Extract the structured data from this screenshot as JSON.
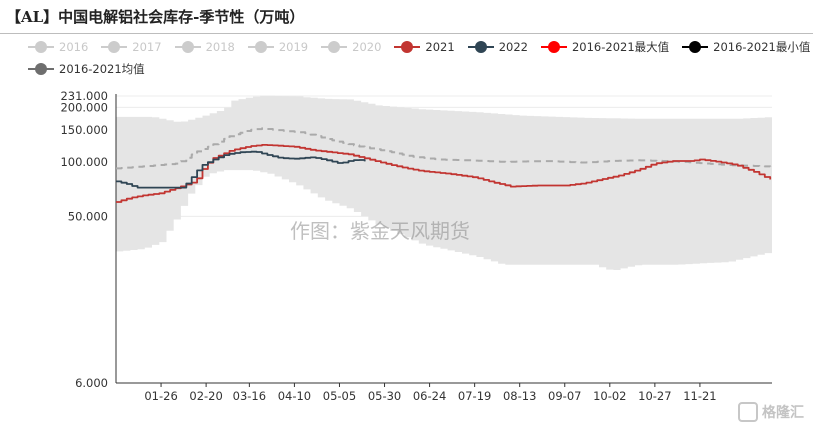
{
  "title": "【AL】中国电解铝社会库存-季节性（万吨）",
  "watermark": "作图：紫金天风期货",
  "corner_mark": "格隆汇",
  "legend": [
    {
      "label": "2016",
      "color": "#cccccc",
      "muted": true
    },
    {
      "label": "2017",
      "color": "#cccccc",
      "muted": true
    },
    {
      "label": "2018",
      "color": "#cccccc",
      "muted": true
    },
    {
      "label": "2019",
      "color": "#cccccc",
      "muted": true
    },
    {
      "label": "2020",
      "color": "#cccccc",
      "muted": true
    },
    {
      "label": "2021",
      "color": "#c23531",
      "muted": false
    },
    {
      "label": "2022",
      "color": "#2f4554",
      "muted": false
    },
    {
      "label": "2016-2021最大值",
      "color": "#ff0000",
      "muted": false
    },
    {
      "label": "2016-2021最小值",
      "color": "#000000",
      "muted": false
    },
    {
      "label": "2016-2021均值",
      "color": "#6e6e6e",
      "muted": false
    }
  ],
  "chart_data": {
    "type": "area",
    "y_scale": "log",
    "ylim": [
      6,
      231
    ],
    "y_ticks": [
      6,
      50,
      100,
      150,
      200,
      231
    ],
    "y_tick_labels": [
      "6.000",
      "50.000",
      "100.000",
      "150.000",
      "200.000",
      "231.000"
    ],
    "x_ticks": [
      {
        "label": "01-26",
        "day": 26
      },
      {
        "label": "02-20",
        "day": 51
      },
      {
        "label": "03-16",
        "day": 75
      },
      {
        "label": "04-10",
        "day": 100
      },
      {
        "label": "05-05",
        "day": 125
      },
      {
        "label": "05-30",
        "day": 150
      },
      {
        "label": "06-24",
        "day": 175
      },
      {
        "label": "07-19",
        "day": 200
      },
      {
        "label": "08-13",
        "day": 225
      },
      {
        "label": "09-07",
        "day": 250
      },
      {
        "label": "10-02",
        "day": 275
      },
      {
        "label": "10-27",
        "day": 300
      },
      {
        "label": "11-21",
        "day": 325
      }
    ],
    "x_range_day": [
      1,
      365
    ],
    "series": [
      {
        "name": "2016-2021最大值",
        "role": "band-upper",
        "color": "#e5e5e5",
        "points": [
          [
            1,
            177
          ],
          [
            20,
            177
          ],
          [
            35,
            165
          ],
          [
            45,
            175
          ],
          [
            60,
            195
          ],
          [
            65,
            218
          ],
          [
            72,
            225
          ],
          [
            80,
            232
          ],
          [
            100,
            230
          ],
          [
            115,
            223
          ],
          [
            130,
            221
          ],
          [
            145,
            205
          ],
          [
            170,
            195
          ],
          [
            200,
            188
          ],
          [
            225,
            180
          ],
          [
            260,
            175
          ],
          [
            290,
            173
          ],
          [
            320,
            173
          ],
          [
            345,
            173
          ],
          [
            365,
            177
          ]
        ]
      },
      {
        "name": "2016-2021最小值",
        "role": "band-lower",
        "color": "#e5e5e5",
        "points": [
          [
            1,
            32
          ],
          [
            15,
            33
          ],
          [
            25,
            36
          ],
          [
            33,
            48
          ],
          [
            40,
            65
          ],
          [
            50,
            85
          ],
          [
            60,
            90
          ],
          [
            75,
            90
          ],
          [
            85,
            86
          ],
          [
            100,
            75
          ],
          [
            115,
            62
          ],
          [
            130,
            55
          ],
          [
            145,
            45
          ],
          [
            170,
            35
          ],
          [
            200,
            30
          ],
          [
            215,
            27
          ],
          [
            240,
            27
          ],
          [
            265,
            27
          ],
          [
            275,
            25
          ],
          [
            290,
            27
          ],
          [
            310,
            27
          ],
          [
            340,
            28
          ],
          [
            365,
            32
          ]
        ]
      },
      {
        "name": "2016-2021均值",
        "role": "line",
        "color": "#aaaaaa",
        "dashed": true,
        "points": [
          [
            1,
            92
          ],
          [
            20,
            95
          ],
          [
            35,
            98
          ],
          [
            45,
            113
          ],
          [
            55,
            125
          ],
          [
            65,
            140
          ],
          [
            75,
            150
          ],
          [
            82,
            153
          ],
          [
            90,
            150
          ],
          [
            105,
            145
          ],
          [
            120,
            132
          ],
          [
            135,
            122
          ],
          [
            150,
            115
          ],
          [
            165,
            107
          ],
          [
            180,
            103
          ],
          [
            195,
            102
          ],
          [
            215,
            100
          ],
          [
            240,
            101
          ],
          [
            260,
            99
          ],
          [
            275,
            101
          ],
          [
            290,
            102
          ],
          [
            305,
            101
          ],
          [
            315,
            100
          ],
          [
            340,
            96
          ],
          [
            365,
            94
          ]
        ]
      },
      {
        "name": "2021",
        "role": "line",
        "color": "#c23531",
        "points": [
          [
            1,
            60
          ],
          [
            8,
            63
          ],
          [
            15,
            65
          ],
          [
            25,
            67
          ],
          [
            35,
            72
          ],
          [
            45,
            78
          ],
          [
            50,
            95
          ],
          [
            55,
            105
          ],
          [
            65,
            116
          ],
          [
            75,
            122
          ],
          [
            82,
            124
          ],
          [
            90,
            123
          ],
          [
            100,
            121
          ],
          [
            110,
            116
          ],
          [
            120,
            113
          ],
          [
            130,
            110
          ],
          [
            140,
            104
          ],
          [
            150,
            98
          ],
          [
            160,
            93
          ],
          [
            170,
            89
          ],
          [
            185,
            86
          ],
          [
            200,
            82
          ],
          [
            210,
            77
          ],
          [
            220,
            73
          ],
          [
            235,
            74
          ],
          [
            250,
            74
          ],
          [
            260,
            76
          ],
          [
            270,
            80
          ],
          [
            280,
            84
          ],
          [
            290,
            90
          ],
          [
            300,
            98
          ],
          [
            310,
            101
          ],
          [
            320,
            101
          ],
          [
            325,
            103
          ],
          [
            335,
            100
          ],
          [
            345,
            96
          ],
          [
            355,
            88
          ],
          [
            365,
            79
          ]
        ]
      },
      {
        "name": "2022",
        "role": "line",
        "color": "#2f4554",
        "points": [
          [
            1,
            78
          ],
          [
            8,
            75
          ],
          [
            12,
            72
          ],
          [
            20,
            72
          ],
          [
            30,
            72
          ],
          [
            38,
            72
          ],
          [
            42,
            80
          ],
          [
            48,
            95
          ],
          [
            55,
            103
          ],
          [
            62,
            110
          ],
          [
            70,
            113
          ],
          [
            78,
            114
          ],
          [
            85,
            109
          ],
          [
            92,
            105
          ],
          [
            100,
            104
          ],
          [
            110,
            106
          ],
          [
            118,
            102
          ],
          [
            125,
            98
          ],
          [
            130,
            101
          ],
          [
            135,
            103
          ],
          [
            140,
            100
          ]
        ]
      }
    ]
  }
}
